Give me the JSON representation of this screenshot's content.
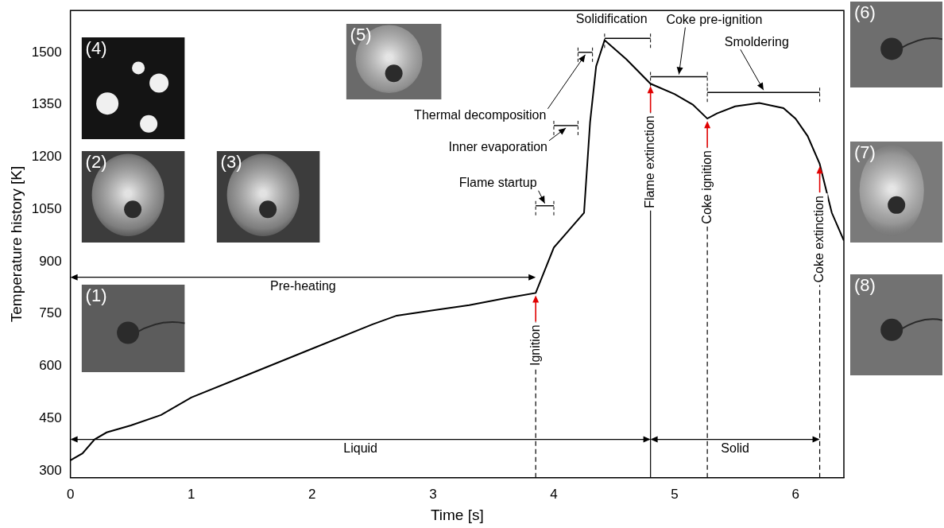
{
  "chart_data": {
    "type": "line",
    "x_label": "Time [s]",
    "y_label": "Temperature history [K]",
    "x": [
      0,
      0.1,
      0.2,
      0.3,
      0.5,
      0.75,
      1,
      1.5,
      2,
      2.5,
      2.7,
      3,
      3.3,
      3.6,
      3.85,
      4,
      4.1,
      4.25,
      4.3,
      4.35,
      4.42,
      4.6,
      4.8,
      5,
      5.15,
      5.27,
      5.35,
      5.5,
      5.7,
      5.9,
      6,
      6.1,
      6.2,
      6.3,
      6.4
    ],
    "values": [
      330,
      350,
      390,
      410,
      430,
      460,
      510,
      580,
      650,
      720,
      745,
      760,
      775,
      795,
      810,
      940,
      980,
      1040,
      1300,
      1460,
      1535,
      1480,
      1410,
      1380,
      1350,
      1310,
      1325,
      1345,
      1355,
      1340,
      1310,
      1260,
      1180,
      1040,
      960
    ],
    "color": "#000000",
    "xlim": [
      0,
      6.4
    ],
    "xticks": [
      0,
      1,
      2,
      3,
      4,
      5,
      6
    ],
    "ylim": [
      280,
      1620
    ],
    "yticks": [
      300,
      450,
      600,
      750,
      900,
      1050,
      1200,
      1350,
      1500
    ],
    "grid": false,
    "annotations": {
      "events": [
        {
          "label": "Ignition",
          "x": 3.85,
          "y": 810,
          "line_style": "dashed"
        },
        {
          "label": "Flame extinction",
          "x": 4.8,
          "y": 1410,
          "line_style": "solid"
        },
        {
          "label": "Coke ignition",
          "x": 5.27,
          "y": 1310,
          "line_style": "dashed"
        },
        {
          "label": "Coke extinction",
          "x": 6.2,
          "y": 1180,
          "line_style": "dashed"
        }
      ],
      "phases": [
        {
          "label": "Flame startup",
          "x": [
            3.85,
            4.0
          ],
          "y": 1060
        },
        {
          "label": "Inner evaporation",
          "x": [
            4.0,
            4.2
          ],
          "y": 1290
        },
        {
          "label": "Thermal decomposition",
          "x": [
            4.2,
            4.32
          ],
          "y": 1500
        },
        {
          "label": "Solidification",
          "x": [
            4.42,
            4.8
          ],
          "y": 1540
        },
        {
          "label": "Coke pre-ignition",
          "x": [
            4.8,
            5.27
          ],
          "y": 1430
        },
        {
          "label": "Smoldering",
          "x": [
            5.27,
            6.2
          ],
          "y": 1385
        }
      ],
      "spans": [
        {
          "label": "Pre-heating",
          "x": [
            0,
            3.85
          ],
          "y": 855
        },
        {
          "label": "Liquid",
          "x": [
            0,
            4.8
          ],
          "y": 390
        },
        {
          "label": "Solid",
          "x": [
            4.8,
            6.2
          ],
          "y": 390
        }
      ],
      "insets": [
        "(1)",
        "(2)",
        "(3)",
        "(4)",
        "(5)",
        "(6)",
        "(7)",
        "(8)"
      ]
    }
  }
}
